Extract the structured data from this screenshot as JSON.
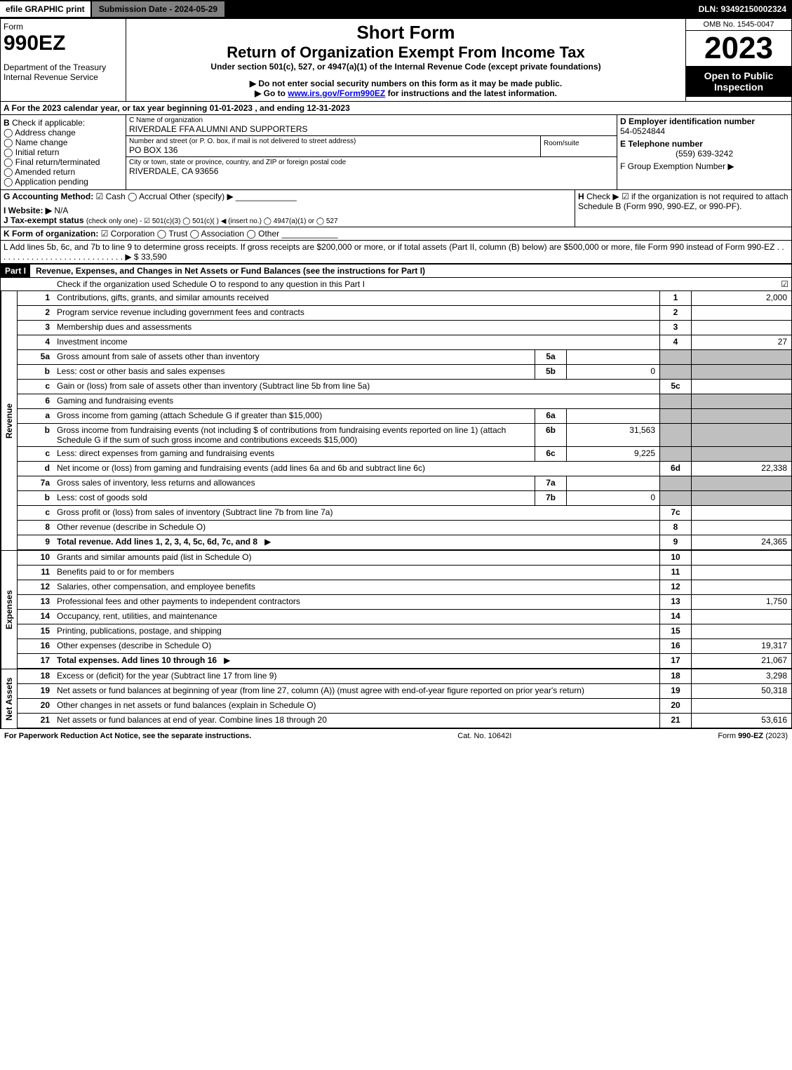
{
  "topbar": {
    "efile": "efile GRAPHIC print",
    "submission": "Submission Date - 2024-05-29",
    "dln": "DLN: 93492150002324"
  },
  "header": {
    "form": "Form",
    "form_no": "990EZ",
    "dept": "Department of the Treasury",
    "irs": "Internal Revenue Service",
    "title1": "Short Form",
    "title2": "Return of Organization Exempt From Income Tax",
    "sub1": "Under section 501(c), 527, or 4947(a)(1) of the Internal Revenue Code (except private foundations)",
    "sub2": "▶ Do not enter social security numbers on this form as it may be made public.",
    "sub3": "▶ Go to www.irs.gov/Form990EZ for instructions and the latest information.",
    "omb": "OMB No. 1545-0047",
    "year": "2023",
    "open": "Open to Public Inspection"
  },
  "A": {
    "text": "A  For the 2023 calendar year, or tax year beginning 01-01-2023 , and ending 12-31-2023"
  },
  "B": {
    "label": "B",
    "check": "Check if applicable:",
    "opts": [
      "Address change",
      "Name change",
      "Initial return",
      "Final return/terminated",
      "Amended return",
      "Application pending"
    ]
  },
  "C": {
    "c_label": "C Name of organization",
    "name": "RIVERDALE FFA ALUMNI AND SUPPORTERS",
    "street_label": "Number and street (or P. O. box, if mail is not delivered to street address)",
    "room": "Room/suite",
    "street": "PO BOX 136",
    "city_label": "City or town, state or province, country, and ZIP or foreign postal code",
    "city": "RIVERDALE, CA  93656"
  },
  "D": {
    "d_label": "D Employer identification number",
    "ein": "54-0524844",
    "e_label": "E Telephone number",
    "phone": "(559) 639-3242",
    "f_label": "F Group Exemption Number   ▶"
  },
  "G": {
    "label": "G Accounting Method:",
    "cash": "Cash",
    "accrual": "Accrual",
    "other": "Other (specify) ▶"
  },
  "H": {
    "label": "H",
    "text": "Check ▶ ☑ if the organization is not required to attach Schedule B (Form 990, 990-EZ, or 990-PF)."
  },
  "I": {
    "label": "I Website: ▶",
    "val": "N/A"
  },
  "J": {
    "label": "J Tax-exempt status",
    "text": "(check only one) - ☑ 501(c)(3)  ◯ 501(c)(  ) ◀ (insert no.)  ◯ 4947(a)(1) or  ◯ 527"
  },
  "K": {
    "label": "K Form of organization:",
    "text": "☑ Corporation   ◯ Trust   ◯ Association   ◯ Other"
  },
  "L": {
    "text": "L Add lines 5b, 6c, and 7b to line 9 to determine gross receipts. If gross receipts are $200,000 or more, or if total assets (Part II, column (B) below) are $500,000 or more, file Form 990 instead of Form 990-EZ  .  .  .  .  .  .  .  .  .  .  .  .  .  .  .  .  .  .  .  .  .  .  .  .  .  .  .  .  ▶ $",
    "val": "33,590"
  },
  "P1": {
    "part": "Part I",
    "title": "Revenue, Expenses, and Changes in Net Assets or Fund Balances (see the instructions for Part I)",
    "checknote": "Check if the organization used Schedule O to respond to any question in this Part I",
    "checked": "☑"
  },
  "sections": {
    "rev": "Revenue",
    "exp": "Expenses",
    "net": "Net Assets"
  },
  "lines": [
    {
      "n": "1",
      "d": "Contributions, gifts, grants, and similar amounts received",
      "b": "1",
      "v": "2,000"
    },
    {
      "n": "2",
      "d": "Program service revenue including government fees and contracts",
      "b": "2",
      "v": ""
    },
    {
      "n": "3",
      "d": "Membership dues and assessments",
      "b": "3",
      "v": ""
    },
    {
      "n": "4",
      "d": "Investment income",
      "b": "4",
      "v": "27"
    },
    {
      "n": "5a",
      "d": "Gross amount from sale of assets other than inventory",
      "ib": "5a",
      "iv": "",
      "shade": true
    },
    {
      "n": "b",
      "d": "Less: cost or other basis and sales expenses",
      "ib": "5b",
      "iv": "0",
      "shade": true
    },
    {
      "n": "c",
      "d": "Gain or (loss) from sale of assets other than inventory (Subtract line 5b from line 5a)",
      "b": "5c",
      "v": ""
    },
    {
      "n": "6",
      "d": "Gaming and fundraising events",
      "shade": true,
      "noright": true
    },
    {
      "n": "a",
      "d": "Gross income from gaming (attach Schedule G if greater than $15,000)",
      "ib": "6a",
      "iv": "",
      "shade": true
    },
    {
      "n": "b",
      "d": "Gross income from fundraising events (not including $                         of contributions from fundraising events reported on line 1) (attach Schedule G if the sum of such gross income and contributions exceeds $15,000)",
      "ib": "6b",
      "iv": "31,563",
      "shade": true
    },
    {
      "n": "c",
      "d": "Less: direct expenses from gaming and fundraising events",
      "ib": "6c",
      "iv": "9,225",
      "shade": true
    },
    {
      "n": "d",
      "d": "Net income or (loss) from gaming and fundraising events (add lines 6a and 6b and subtract line 6c)",
      "b": "6d",
      "v": "22,338"
    },
    {
      "n": "7a",
      "d": "Gross sales of inventory, less returns and allowances",
      "ib": "7a",
      "iv": "",
      "shade": true
    },
    {
      "n": "b",
      "d": "Less: cost of goods sold",
      "ib": "7b",
      "iv": "0",
      "shade": true
    },
    {
      "n": "c",
      "d": "Gross profit or (loss) from sales of inventory (Subtract line 7b from line 7a)",
      "b": "7c",
      "v": ""
    },
    {
      "n": "8",
      "d": "Other revenue (describe in Schedule O)",
      "b": "8",
      "v": ""
    },
    {
      "n": "9",
      "d": "Total revenue. Add lines 1, 2, 3, 4, 5c, 6d, 7c, and 8",
      "b": "9",
      "v": "24,365",
      "bold": true,
      "arrow": true
    }
  ],
  "exp_lines": [
    {
      "n": "10",
      "d": "Grants and similar amounts paid (list in Schedule O)",
      "b": "10",
      "v": ""
    },
    {
      "n": "11",
      "d": "Benefits paid to or for members",
      "b": "11",
      "v": ""
    },
    {
      "n": "12",
      "d": "Salaries, other compensation, and employee benefits",
      "b": "12",
      "v": ""
    },
    {
      "n": "13",
      "d": "Professional fees and other payments to independent contractors",
      "b": "13",
      "v": "1,750"
    },
    {
      "n": "14",
      "d": "Occupancy, rent, utilities, and maintenance",
      "b": "14",
      "v": ""
    },
    {
      "n": "15",
      "d": "Printing, publications, postage, and shipping",
      "b": "15",
      "v": ""
    },
    {
      "n": "16",
      "d": "Other expenses (describe in Schedule O)",
      "b": "16",
      "v": "19,317"
    },
    {
      "n": "17",
      "d": "Total expenses. Add lines 10 through 16",
      "b": "17",
      "v": "21,067",
      "bold": true,
      "arrow": true
    }
  ],
  "net_lines": [
    {
      "n": "18",
      "d": "Excess or (deficit) for the year (Subtract line 17 from line 9)",
      "b": "18",
      "v": "3,298"
    },
    {
      "n": "19",
      "d": "Net assets or fund balances at beginning of year (from line 27, column (A)) (must agree with end-of-year figure reported on prior year's return)",
      "b": "19",
      "v": "50,318"
    },
    {
      "n": "20",
      "d": "Other changes in net assets or fund balances (explain in Schedule O)",
      "b": "20",
      "v": ""
    },
    {
      "n": "21",
      "d": "Net assets or fund balances at end of year. Combine lines 18 through 20",
      "b": "21",
      "v": "53,616"
    }
  ],
  "footer": {
    "l": "For Paperwork Reduction Act Notice, see the separate instructions.",
    "c": "Cat. No. 10642I",
    "r": "Form 990-EZ (2023)"
  }
}
